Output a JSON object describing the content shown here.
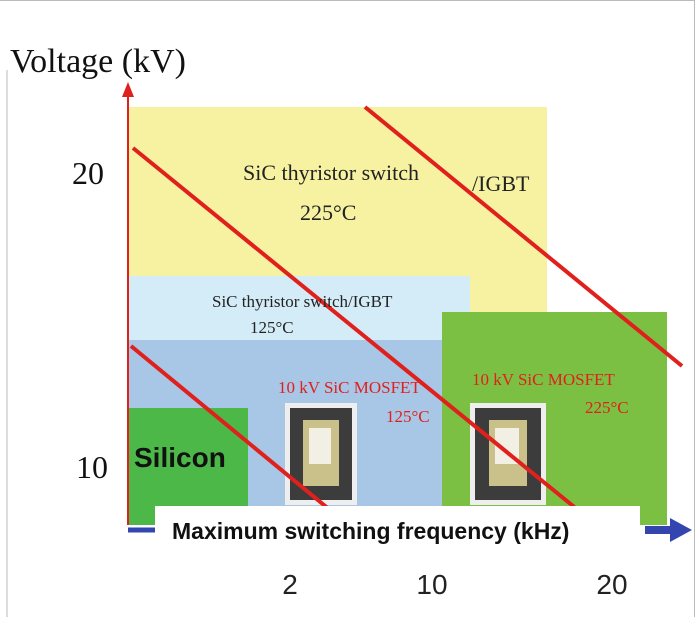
{
  "axes": {
    "y_title": "Voltage (kV)",
    "y_labels": [
      "20",
      "10"
    ],
    "x_title": "Maximum switching frequency (kHz)",
    "x_labels": [
      "2",
      "10",
      "20"
    ]
  },
  "regions": [
    {
      "label": "SiC thyristor switch",
      "temp": "225°C",
      "suffix": "/IGBT"
    },
    {
      "label": "SiC thyristor switch/IGBT",
      "temp": "125°C"
    },
    {
      "label": "10 kV SiC MOSFET",
      "temp": "125°C"
    },
    {
      "label": "10 kV SiC MOSFET",
      "temp": "225°C"
    },
    {
      "label": "Silicon"
    }
  ]
}
